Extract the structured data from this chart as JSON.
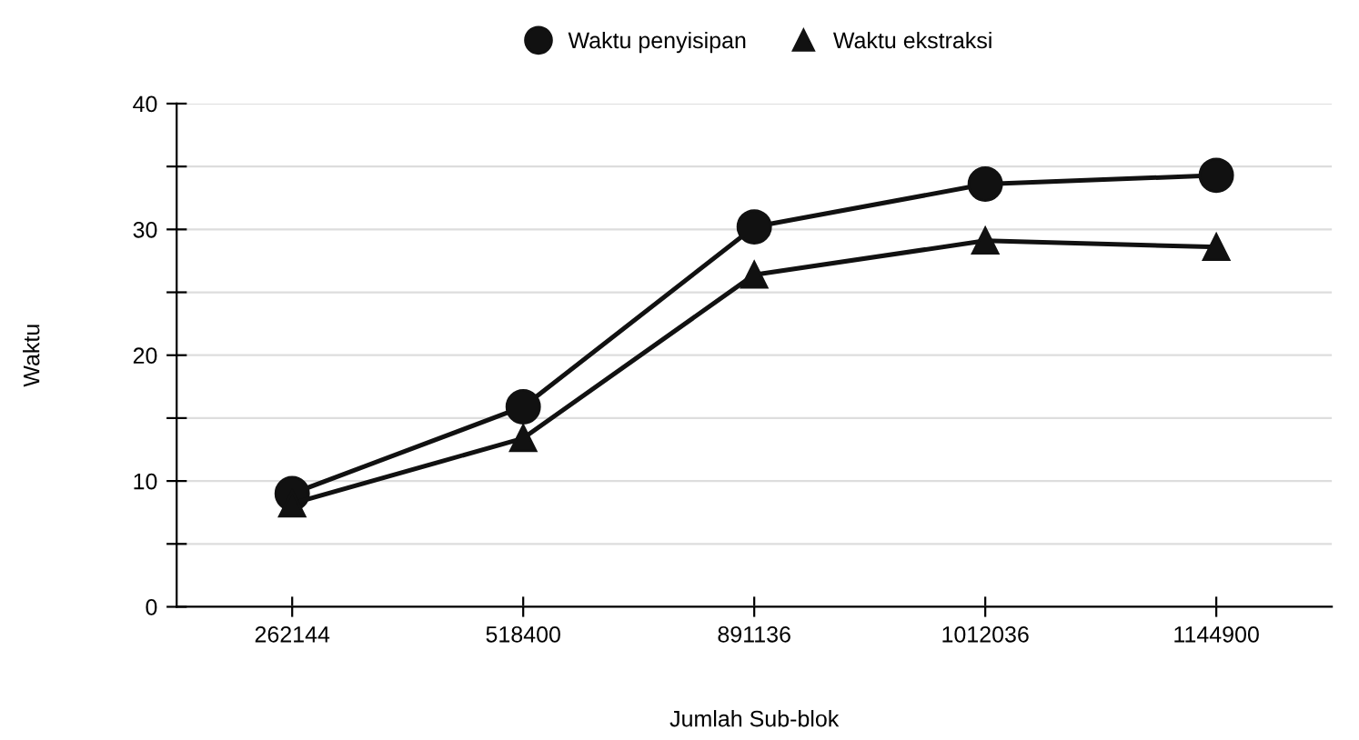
{
  "chart_data": {
    "type": "line",
    "xlabel": "Jumlah Sub-blok",
    "ylabel": "Waktu",
    "categories": [
      "262144",
      "518400",
      "891136",
      "1012036",
      "1144900"
    ],
    "series": [
      {
        "name": "Waktu penyisipan",
        "color": "#111111",
        "marker": "circle",
        "values": [
          9.0,
          15.9,
          30.2,
          33.6,
          34.3
        ]
      },
      {
        "name": "Waktu ekstraksi",
        "color": "#111111",
        "marker": "triangle",
        "values": [
          8.2,
          13.4,
          26.4,
          29.1,
          28.6
        ]
      }
    ],
    "ylim": [
      0,
      40
    ],
    "yticks": [
      0,
      {
        "value": 5,
        "label": null
      },
      10,
      {
        "value": 15,
        "label": null
      },
      20,
      {
        "value": 25,
        "label": null
      },
      30,
      {
        "value": 35,
        "label": null
      },
      40
    ],
    "grid": "y",
    "legend": "top",
    "line_style": "solid"
  }
}
